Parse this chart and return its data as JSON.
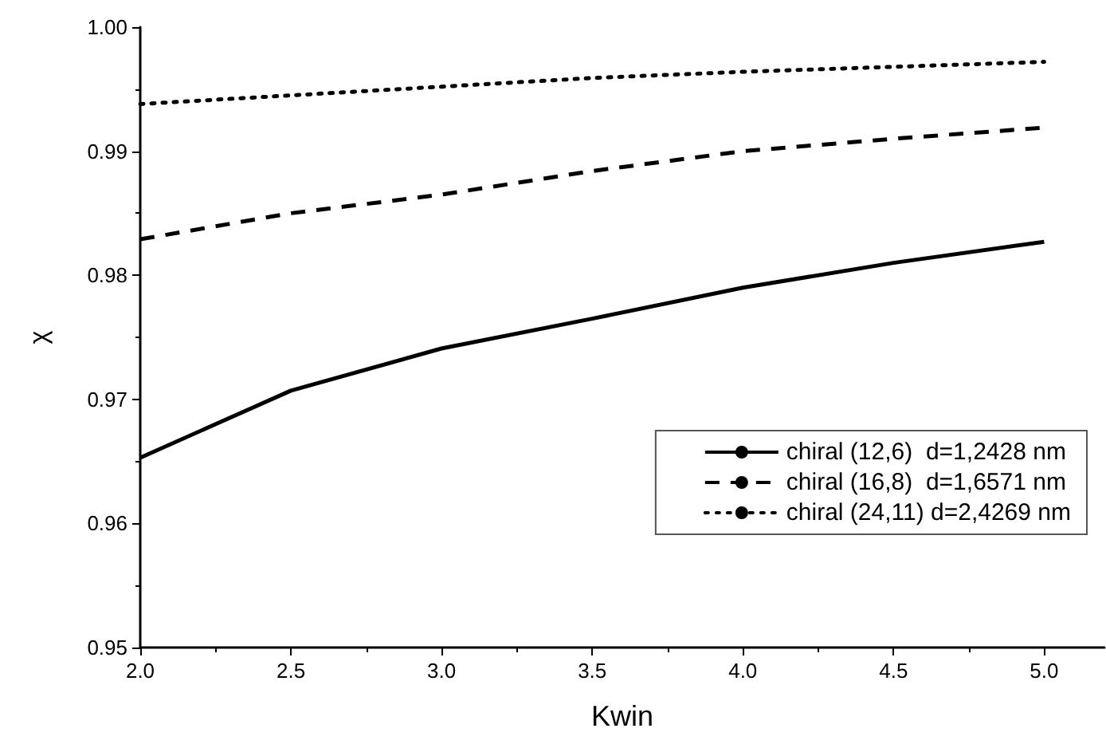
{
  "chart_data": {
    "type": "line",
    "xlabel": "Kwin",
    "ylabel": "χ",
    "xlim": [
      2.0,
      5.2
    ],
    "xticks": [
      {
        "value": 2,
        "label": "2.0"
      },
      2.5,
      {
        "value": 3,
        "label": "3.0"
      },
      3.5,
      {
        "value": 4,
        "label": "4.0"
      },
      4.5,
      {
        "value": 5,
        "label": "5.0"
      }
    ],
    "ylim": [
      0.95,
      1.0
    ],
    "yticks": [
      0.95,
      0.96,
      0.97,
      0.98,
      0.99,
      {
        "value": 1,
        "label": "1.00"
      }
    ],
    "grid": false,
    "legend": "bottom right",
    "x": [
      2.0,
      2.5,
      3.0,
      3.5,
      4.0,
      4.5,
      5.0
    ],
    "series": [
      {
        "name": "chiral (12,6)  d=1,2428 nm",
        "color": "#000000",
        "line_style": "solid",
        "values": [
          0.9653,
          0.9707,
          0.9741,
          0.9765,
          0.979,
          0.981,
          0.9827
        ]
      },
      {
        "name": "chiral (16,8)  d=1,6571 nm",
        "color": "#000000",
        "line_style": "dashed",
        "values": [
          0.9829,
          0.985,
          0.9865,
          0.9884,
          0.99,
          0.991,
          0.9919
        ]
      },
      {
        "name": "chiral (24,11) d=2,4269 nm",
        "color": "#000000",
        "line_style": "dotted",
        "values": [
          0.9938,
          0.9945,
          0.9952,
          0.9959,
          0.9964,
          0.9968,
          0.9972
        ]
      }
    ]
  }
}
